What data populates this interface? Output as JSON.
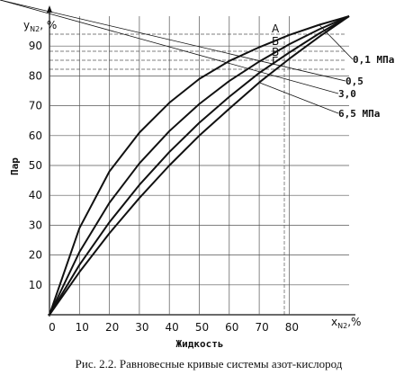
{
  "chart_data": {
    "type": "line",
    "x_axis_title": {
      "symbol": "x",
      "subscript": "N2",
      "unit": ",%"
    },
    "y_axis_title": {
      "symbol": "y",
      "subscript": "N2",
      "unit": ", %"
    },
    "x_label": "Жидкость",
    "y_label": "Пар",
    "caption": "Рис. 2.2. Равновесные кривые системы азот-кислород",
    "x": [
      0,
      10,
      20,
      30,
      40,
      50,
      60,
      70,
      80,
      90,
      100
    ],
    "series": [
      {
        "name": "0,1 МПа",
        "color": "#111",
        "values": [
          0,
          29,
          48,
          61,
          71,
          79,
          85,
          89.6,
          93.7,
          97.1,
          100
        ]
      },
      {
        "name": "0,5",
        "color": "#111",
        "values": [
          0,
          21,
          37.5,
          50.7,
          61.5,
          70.6,
          78.3,
          84.8,
          90.6,
          95.6,
          100
        ]
      },
      {
        "name": "3,0",
        "color": "#111",
        "values": [
          0,
          16.7,
          31,
          43.5,
          54.5,
          64.3,
          73,
          81,
          87.8,
          94.2,
          100
        ]
      },
      {
        "name": "6,5 МПа",
        "color": "#111",
        "values": [
          0,
          14.3,
          27.3,
          39.1,
          50,
          60,
          69,
          77.8,
          85.7,
          93.1,
          100
        ]
      }
    ],
    "annotations": [
      "А",
      "Б",
      "В",
      "Г"
    ],
    "xlim": [
      0,
      100
    ],
    "ylim": [
      0,
      100
    ],
    "xticks": [
      0,
      10,
      20,
      30,
      40,
      50,
      60,
      70,
      80
    ],
    "yticks": [
      10,
      20,
      30,
      40,
      50,
      60,
      70,
      80,
      90
    ],
    "grid": true
  }
}
